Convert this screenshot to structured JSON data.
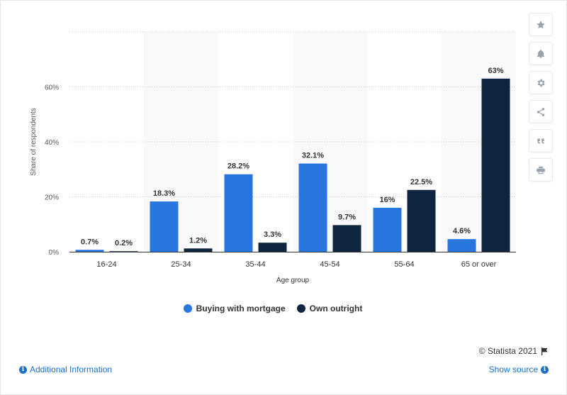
{
  "chart_data": {
    "type": "bar",
    "categories": [
      "16-24",
      "25-34",
      "35-44",
      "45-54",
      "55-64",
      "65 or over"
    ],
    "series": [
      {
        "name": "Buying with mortgage",
        "values": [
          0.7,
          18.3,
          28.2,
          32.1,
          16,
          4.6
        ],
        "labels": [
          "0.7%",
          "18.3%",
          "28.2%",
          "32.1%",
          "16%",
          "4.6%"
        ],
        "color": "#2876dd"
      },
      {
        "name": "Own outright",
        "values": [
          0.2,
          1.2,
          3.3,
          9.7,
          22.5,
          63
        ],
        "labels": [
          "0.2%",
          "1.2%",
          "3.3%",
          "9.7%",
          "22.5%",
          "63%"
        ],
        "color": "#0f2640"
      }
    ],
    "xlabel": "Age group",
    "ylabel": "Share of respondents",
    "ylim": [
      0,
      80
    ],
    "yticks": [
      0,
      20,
      40,
      60
    ],
    "ytick_labels": [
      "0%",
      "20%",
      "40%",
      "60%"
    ],
    "grid": true,
    "legend_position": "bottom-center"
  },
  "toolbar": {
    "icons": [
      "star-icon",
      "bell-icon",
      "gear-icon",
      "share-icon",
      "quote-icon",
      "print-icon"
    ]
  },
  "footer": {
    "credit": "© Statista 2021",
    "additional_info": "Additional Information",
    "show_source": "Show source"
  }
}
